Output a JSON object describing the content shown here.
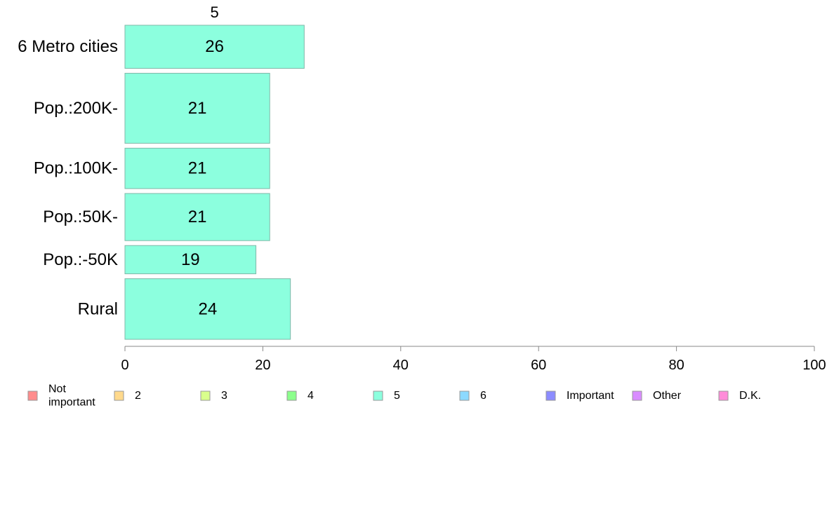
{
  "chart_data": {
    "type": "bar",
    "orientation": "horizontal",
    "series_title": "5",
    "categories": [
      "6 Metro cities",
      "Pop.:200K-",
      "Pop.:100K-",
      "Pop.:50K-",
      "Pop.:-50K",
      "Rural"
    ],
    "weights": [
      0.64,
      1.04,
      0.6,
      0.7,
      0.42,
      0.9
    ],
    "values": [
      26,
      21,
      21,
      21,
      19,
      24
    ],
    "value_labels": [
      "26",
      "21",
      "21",
      "21",
      "19",
      "24"
    ],
    "bar_color": "#8CFFDE",
    "bar_stroke": "#7fb8a8",
    "xlim": [
      0,
      100
    ],
    "xticks": [
      0,
      20,
      40,
      60,
      80,
      100
    ],
    "xtick_labels": [
      "0",
      "20",
      "40",
      "60",
      "80",
      "100"
    ],
    "grid": false,
    "legend_position": "bottom",
    "legend": [
      {
        "label": "Not\nimportant",
        "color": "#FF8C8C"
      },
      {
        "label": "2",
        "color": "#FFD98C"
      },
      {
        "label": "3",
        "color": "#D9FF8C"
      },
      {
        "label": "4",
        "color": "#8CFF8C"
      },
      {
        "label": "5",
        "color": "#8CFFDE"
      },
      {
        "label": "6",
        "color": "#8CD9FF"
      },
      {
        "label": "Important",
        "color": "#8C8CFF"
      },
      {
        "label": "Other",
        "color": "#D98CFF"
      },
      {
        "label": "D.K.",
        "color": "#FF8CD9"
      }
    ]
  }
}
